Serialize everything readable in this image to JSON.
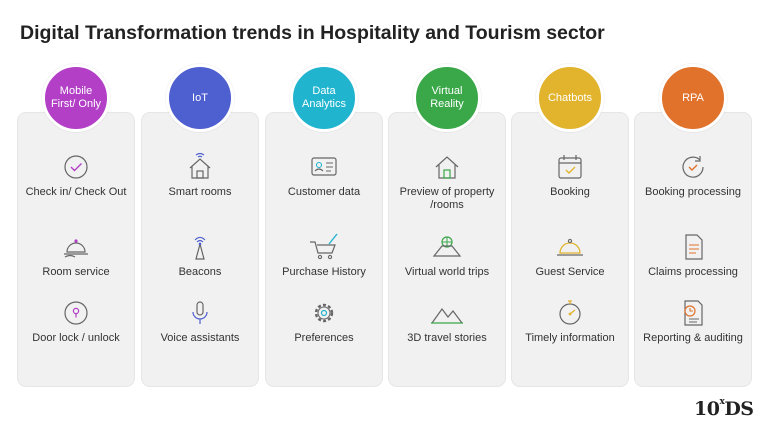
{
  "title": "Digital Transformation trends in Hospitality and Tourism sector",
  "columns": [
    {
      "heading": "Mobile First/ Only",
      "color": "#b23fc6",
      "items": [
        {
          "icon": "checkmark-circle-icon",
          "label": "Check in/ Check Out"
        },
        {
          "icon": "room-service-bell-icon",
          "label": "Room service"
        },
        {
          "icon": "door-lock-icon",
          "label": "Door lock / unlock"
        }
      ]
    },
    {
      "heading": "IoT",
      "color": "#4e5fcf",
      "items": [
        {
          "icon": "smart-home-icon",
          "label": "Smart rooms"
        },
        {
          "icon": "beacon-icon",
          "label": "Beacons"
        },
        {
          "icon": "microphone-icon",
          "label": "Voice assistants"
        }
      ]
    },
    {
      "heading": "Data Analytics",
      "color": "#20b4cf",
      "items": [
        {
          "icon": "id-card-icon",
          "label": "Customer data"
        },
        {
          "icon": "shopping-cart-icon",
          "label": "Purchase History"
        },
        {
          "icon": "gear-icon",
          "label": "Preferences"
        }
      ]
    },
    {
      "heading": "Virtual Reality",
      "color": "#3aa749",
      "items": [
        {
          "icon": "house-icon",
          "label": "Preview of property /rooms"
        },
        {
          "icon": "vr-globe-icon",
          "label": "Virtual world trips"
        },
        {
          "icon": "mountains-icon",
          "label": "3D travel stories"
        }
      ]
    },
    {
      "heading": "Chatbots",
      "color": "#e2b32d",
      "items": [
        {
          "icon": "calendar-check-icon",
          "label": "Booking"
        },
        {
          "icon": "service-cloche-icon",
          "label": "Guest Service"
        },
        {
          "icon": "stopwatch-icon",
          "label": "Timely information"
        }
      ]
    },
    {
      "heading": "RPA",
      "color": "#e0722c",
      "items": [
        {
          "icon": "refresh-clock-icon",
          "label": "Booking processing"
        },
        {
          "icon": "document-icon",
          "label": "Claims processing"
        },
        {
          "icon": "report-clock-icon",
          "label": "Reporting & auditing"
        }
      ]
    }
  ],
  "logo": {
    "main": "10",
    "sup": "x",
    "suffix": "DS"
  }
}
